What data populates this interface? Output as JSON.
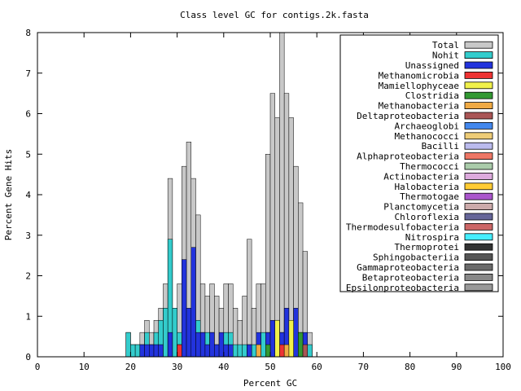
{
  "chart_data": {
    "type": "bar",
    "title": "Class level GC for contigs.2k.fasta",
    "xlabel": "Percent GC",
    "ylabel": "Percent Gene Hits",
    "xlim": [
      0,
      100
    ],
    "ylim": [
      0,
      8
    ],
    "xticks": [
      "0",
      "10",
      "20",
      "30",
      "40",
      "50",
      "60",
      "70",
      "80",
      "90",
      "100"
    ],
    "yticks": [
      "0",
      "1",
      "2",
      "3",
      "4",
      "5",
      "6",
      "7",
      "8"
    ],
    "legend_position": "top-right",
    "bin_width": 1,
    "x": [
      19,
      20,
      21,
      22,
      23,
      24,
      25,
      26,
      27,
      28,
      29,
      30,
      31,
      32,
      33,
      34,
      35,
      36,
      37,
      38,
      39,
      40,
      41,
      42,
      43,
      44,
      45,
      46,
      47,
      48,
      49,
      50,
      51,
      52,
      53,
      54,
      55,
      56,
      57,
      58
    ],
    "series": [
      {
        "name": "Total",
        "color": "#c8c8c8",
        "values": [
          0.6,
          0.3,
          0.3,
          0.6,
          0.9,
          0.6,
          0.9,
          1.2,
          1.8,
          4.4,
          1.2,
          1.8,
          4.7,
          5.3,
          4.4,
          3.5,
          1.8,
          1.5,
          1.8,
          1.5,
          1.2,
          1.8,
          1.8,
          1.2,
          0.9,
          1.5,
          2.9,
          1.2,
          1.8,
          1.8,
          5.0,
          6.5,
          5.9,
          8.0,
          6.5,
          5.9,
          4.7,
          3.8,
          2.6,
          0.6
        ]
      },
      {
        "name": "Nohit",
        "color": "#33cccc",
        "values": [
          0.6,
          0.3,
          0.3,
          0.3,
          0.6,
          0.3,
          0.6,
          0.9,
          1.2,
          2.9,
          1.2,
          0.6,
          0.6,
          0.9,
          0.6,
          0.9,
          0.6,
          0.6,
          0.6,
          0.3,
          0.3,
          0.6,
          0.6,
          0.3,
          0.3,
          0.3,
          0.3,
          0.3,
          0.3,
          0.6,
          0.6,
          0.6,
          0.9,
          0.6,
          0.9,
          0.6,
          0.6,
          0.3,
          0.3,
          0.3
        ]
      },
      {
        "name": "Unassigned",
        "color": "#2233dd",
        "values": [
          0,
          0,
          0,
          0.3,
          0.3,
          0.3,
          0.3,
          0.3,
          0,
          0.6,
          0,
          0.3,
          2.4,
          1.2,
          2.7,
          0.6,
          0.6,
          0.3,
          0.6,
          0.3,
          0.6,
          0.3,
          0.3,
          0,
          0,
          0,
          0.3,
          0,
          0.6,
          0,
          0.6,
          0.9,
          0.9,
          0.6,
          1.2,
          0.6,
          1.2,
          0.6,
          0.6,
          0
        ]
      },
      {
        "name": "Methanomicrobia",
        "color": "#ee3333",
        "values": [
          0,
          0,
          0,
          0,
          0,
          0,
          0,
          0,
          0,
          0,
          0,
          0.3,
          0,
          0,
          0,
          0,
          0,
          0,
          0,
          0,
          0,
          0,
          0,
          0,
          0,
          0,
          0,
          0,
          0,
          0,
          0,
          0,
          0,
          0.3,
          0,
          0,
          0,
          0,
          0,
          0
        ]
      },
      {
        "name": "Mamiellophyceae",
        "color": "#f0f04a",
        "values": [
          0,
          0,
          0,
          0,
          0,
          0,
          0,
          0,
          0,
          0,
          0,
          0,
          0,
          0,
          0,
          0,
          0,
          0,
          0,
          0,
          0,
          0,
          0,
          0,
          0,
          0,
          0,
          0,
          0,
          0,
          0,
          0,
          0.9,
          0,
          0,
          0.9,
          0,
          0,
          0,
          0
        ]
      },
      {
        "name": "Clostridia",
        "color": "#339933",
        "values": [
          0,
          0,
          0,
          0,
          0,
          0,
          0,
          0,
          0,
          0,
          0,
          0,
          0,
          0,
          0,
          0,
          0,
          0,
          0,
          0,
          0,
          0,
          0,
          0,
          0,
          0,
          0,
          0,
          0,
          0,
          0.3,
          0,
          0,
          0,
          0,
          0,
          0,
          0.6,
          0,
          0
        ]
      },
      {
        "name": "Methanobacteria",
        "color": "#f0aa44",
        "values": [
          0,
          0,
          0,
          0,
          0,
          0,
          0,
          0,
          0,
          0,
          0,
          0,
          0,
          0,
          0,
          0,
          0,
          0,
          0,
          0,
          0,
          0,
          0,
          0,
          0,
          0,
          0,
          0,
          0.3,
          0,
          0,
          0,
          0,
          0,
          0.3,
          0,
          0,
          0,
          0,
          0
        ]
      },
      {
        "name": "Deltaproteobacteria",
        "color": "#aa5555",
        "values": [
          0,
          0,
          0,
          0,
          0,
          0,
          0,
          0,
          0,
          0,
          0,
          0,
          0,
          0,
          0,
          0,
          0,
          0,
          0,
          0,
          0,
          0,
          0,
          0,
          0,
          0,
          0,
          0,
          0,
          0,
          0,
          0,
          0,
          0,
          0,
          0,
          0,
          0,
          0.3,
          0
        ]
      },
      {
        "name": "Archaeoglobi",
        "color": "#4488ee",
        "values": [
          0,
          0,
          0,
          0,
          0,
          0,
          0,
          0,
          0,
          0,
          0,
          0,
          0,
          0,
          0,
          0,
          0,
          0,
          0,
          0,
          0,
          0,
          0,
          0,
          0,
          0,
          0,
          0,
          0,
          0,
          0,
          0,
          0,
          0,
          0,
          0,
          0,
          0,
          0,
          0
        ]
      },
      {
        "name": "Methanococci",
        "color": "#eecc77",
        "values": [
          0,
          0,
          0,
          0,
          0,
          0,
          0,
          0,
          0,
          0,
          0,
          0,
          0,
          0,
          0,
          0,
          0,
          0,
          0,
          0,
          0,
          0,
          0,
          0,
          0,
          0,
          0,
          0,
          0,
          0,
          0,
          0,
          0,
          0,
          0,
          0,
          0,
          0,
          0,
          0
        ]
      },
      {
        "name": "Bacilli",
        "color": "#bbbbee",
        "values": [
          0,
          0,
          0,
          0,
          0,
          0,
          0,
          0,
          0,
          0,
          0,
          0,
          0,
          0,
          0,
          0,
          0,
          0,
          0,
          0,
          0,
          0,
          0,
          0,
          0,
          0,
          0,
          0,
          0,
          0,
          0,
          0,
          0,
          0,
          0,
          0,
          0,
          0,
          0,
          0
        ]
      },
      {
        "name": "Alphaproteobacteria",
        "color": "#ee7766",
        "values": [
          0,
          0,
          0,
          0,
          0,
          0,
          0,
          0,
          0,
          0,
          0,
          0,
          0,
          0,
          0,
          0,
          0,
          0,
          0,
          0,
          0,
          0,
          0,
          0,
          0,
          0,
          0,
          0,
          0,
          0,
          0,
          0,
          0,
          0,
          0,
          0,
          0,
          0,
          0,
          0
        ]
      },
      {
        "name": "Thermococci",
        "color": "#aaccaa",
        "values": [
          0,
          0,
          0,
          0,
          0,
          0,
          0,
          0,
          0,
          0,
          0,
          0,
          0,
          0,
          0,
          0,
          0,
          0,
          0,
          0,
          0,
          0,
          0,
          0,
          0,
          0,
          0,
          0,
          0,
          0,
          0,
          0,
          0,
          0,
          0,
          0,
          0,
          0,
          0,
          0
        ]
      },
      {
        "name": "Actinobacteria",
        "color": "#ddaadd",
        "values": [
          0,
          0,
          0,
          0,
          0,
          0,
          0,
          0,
          0,
          0,
          0,
          0,
          0,
          0,
          0,
          0,
          0,
          0,
          0,
          0,
          0,
          0,
          0,
          0,
          0,
          0,
          0,
          0,
          0,
          0,
          0,
          0,
          0,
          0,
          0,
          0,
          0,
          0,
          0,
          0
        ]
      },
      {
        "name": "Halobacteria",
        "color": "#ffcc33",
        "values": [
          0,
          0,
          0,
          0,
          0,
          0,
          0,
          0,
          0,
          0,
          0,
          0,
          0,
          0,
          0,
          0,
          0,
          0,
          0,
          0,
          0,
          0,
          0,
          0,
          0,
          0,
          0,
          0,
          0,
          0,
          0,
          0,
          0,
          0,
          0,
          0,
          0,
          0,
          0,
          0
        ]
      },
      {
        "name": "Thermotogae",
        "color": "#aa55cc",
        "values": [
          0,
          0,
          0,
          0,
          0,
          0,
          0,
          0,
          0,
          0,
          0,
          0,
          0,
          0,
          0,
          0,
          0,
          0,
          0,
          0,
          0,
          0,
          0,
          0,
          0,
          0,
          0,
          0,
          0,
          0,
          0,
          0,
          0,
          0,
          0,
          0,
          0,
          0,
          0,
          0
        ]
      },
      {
        "name": "Planctomycetia",
        "color": "#ccaaaa",
        "values": [
          0,
          0,
          0,
          0,
          0,
          0,
          0,
          0,
          0,
          0,
          0,
          0,
          0,
          0,
          0,
          0,
          0,
          0,
          0,
          0,
          0,
          0,
          0,
          0,
          0,
          0,
          0,
          0,
          0,
          0,
          0,
          0,
          0,
          0,
          0,
          0,
          0,
          0,
          0,
          0
        ]
      },
      {
        "name": "Chloroflexia",
        "color": "#666699",
        "values": [
          0,
          0,
          0,
          0,
          0,
          0,
          0,
          0,
          0,
          0,
          0,
          0,
          0,
          0,
          0,
          0,
          0,
          0,
          0,
          0,
          0,
          0,
          0,
          0,
          0,
          0,
          0,
          0,
          0,
          0,
          0,
          0,
          0,
          0,
          0,
          0,
          0,
          0,
          0,
          0
        ]
      },
      {
        "name": "Thermodesulfobacteria",
        "color": "#cc6666",
        "values": [
          0,
          0,
          0,
          0,
          0,
          0,
          0,
          0,
          0,
          0,
          0,
          0,
          0,
          0,
          0,
          0,
          0,
          0,
          0,
          0,
          0,
          0,
          0,
          0,
          0,
          0,
          0,
          0,
          0,
          0,
          0,
          0,
          0,
          0,
          0,
          0,
          0,
          0,
          0,
          0
        ]
      },
      {
        "name": "Nitrospira",
        "color": "#44eeff",
        "values": [
          0,
          0,
          0,
          0,
          0,
          0,
          0,
          0,
          0,
          0,
          0,
          0,
          0,
          0,
          0,
          0,
          0,
          0,
          0,
          0,
          0,
          0,
          0,
          0,
          0,
          0,
          0,
          0,
          0,
          0,
          0,
          0,
          0,
          0,
          0,
          0,
          0,
          0,
          0,
          0
        ]
      },
      {
        "name": "Thermoprotei",
        "color": "#333333",
        "values": [
          0,
          0,
          0,
          0,
          0,
          0,
          0,
          0,
          0,
          0,
          0,
          0,
          0,
          0,
          0,
          0,
          0,
          0,
          0,
          0,
          0,
          0,
          0,
          0,
          0,
          0,
          0,
          0,
          0,
          0,
          0,
          0,
          0,
          0,
          0,
          0,
          0,
          0,
          0,
          0
        ]
      },
      {
        "name": "Sphingobacteriia",
        "color": "#555555",
        "values": [
          0,
          0,
          0,
          0,
          0,
          0,
          0,
          0,
          0,
          0,
          0,
          0,
          0,
          0,
          0,
          0,
          0,
          0,
          0,
          0,
          0,
          0,
          0,
          0,
          0,
          0,
          0,
          0,
          0,
          0,
          0,
          0,
          0,
          0,
          0,
          0,
          0,
          0,
          0,
          0
        ]
      },
      {
        "name": "Gammaproteobacteria",
        "color": "#6a6a6a",
        "values": [
          0,
          0,
          0,
          0,
          0,
          0,
          0,
          0,
          0,
          0,
          0,
          0,
          0,
          0,
          0,
          0,
          0,
          0,
          0,
          0,
          0,
          0,
          0,
          0,
          0,
          0,
          0,
          0,
          0,
          0,
          0,
          0,
          0,
          0,
          0,
          0,
          0,
          0,
          0,
          0
        ]
      },
      {
        "name": "Betaproteobacteria",
        "color": "#888888",
        "values": [
          0,
          0,
          0,
          0,
          0,
          0,
          0,
          0,
          0,
          0,
          0,
          0,
          0,
          0,
          0,
          0,
          0,
          0,
          0,
          0,
          0,
          0,
          0,
          0,
          0,
          0,
          0,
          0,
          0,
          0,
          0,
          0,
          0,
          0,
          0,
          0,
          0,
          0,
          0,
          0
        ]
      },
      {
        "name": "Epsilonproteobacteria",
        "color": "#999999",
        "values": [
          0,
          0,
          0,
          0,
          0,
          0,
          0,
          0,
          0,
          0,
          0,
          0,
          0,
          0,
          0,
          0,
          0,
          0,
          0,
          0,
          0,
          0,
          0,
          0,
          0,
          0,
          0,
          0,
          0,
          0,
          0,
          0,
          0,
          0,
          0,
          0,
          0,
          0,
          0,
          0
        ]
      }
    ]
  }
}
